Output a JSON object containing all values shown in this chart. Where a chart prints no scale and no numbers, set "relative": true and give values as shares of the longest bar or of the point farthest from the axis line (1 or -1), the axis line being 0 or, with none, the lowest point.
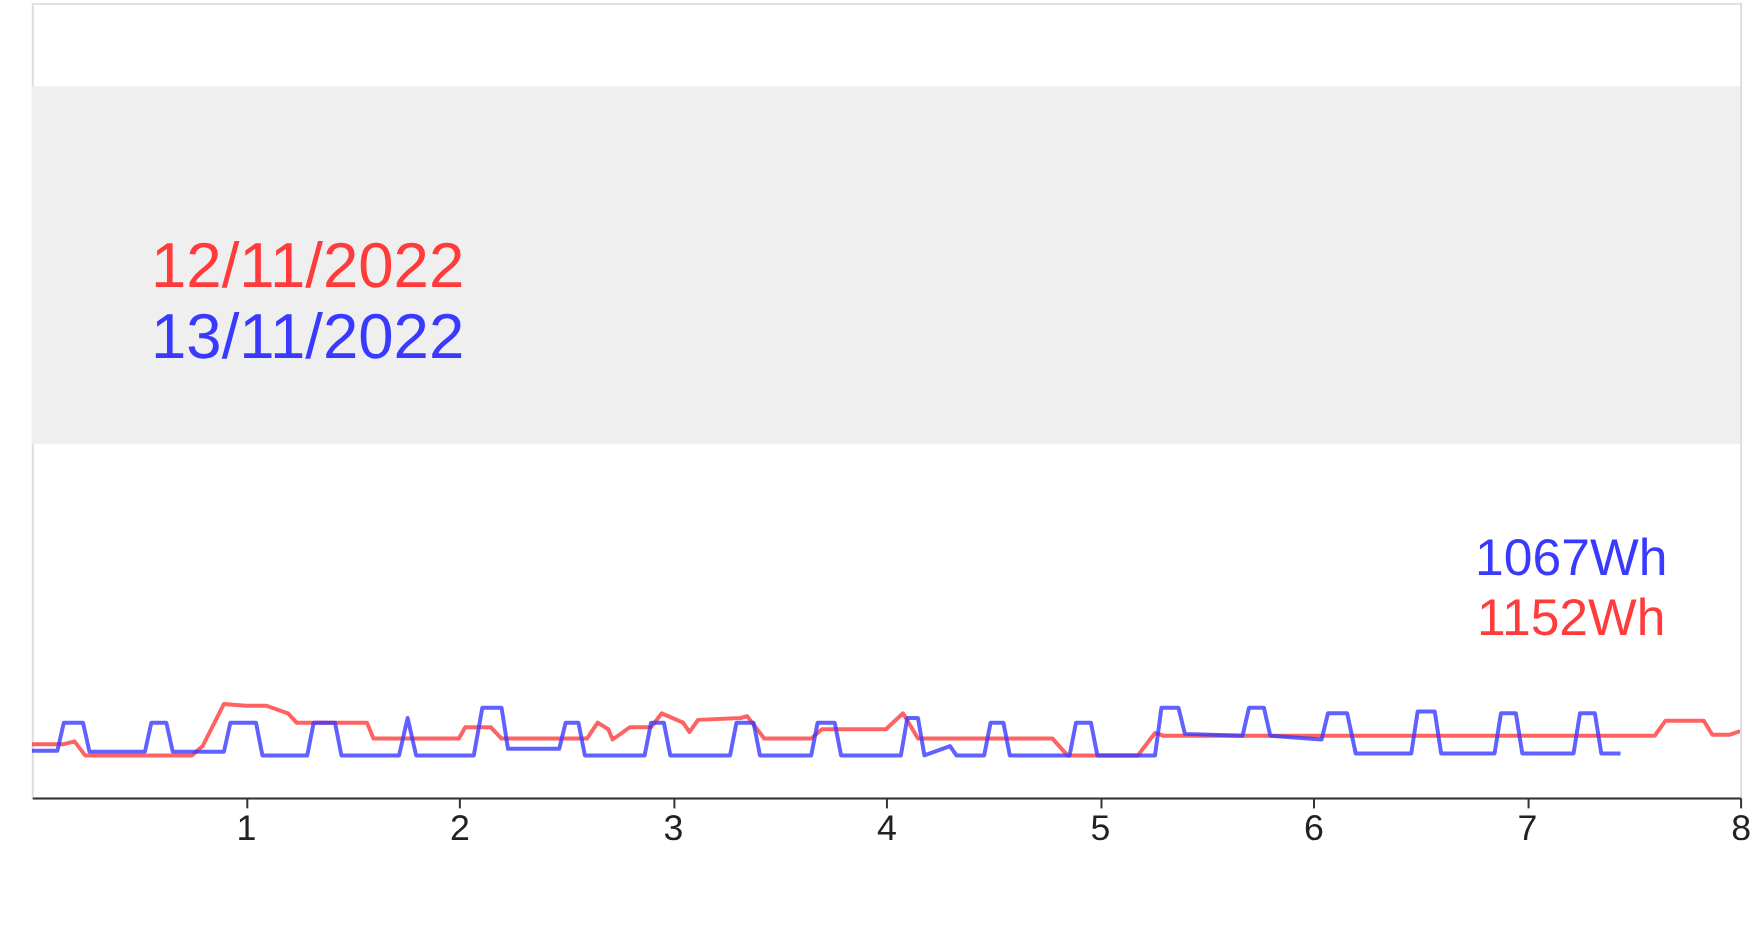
{
  "chart_data": {
    "type": "line",
    "relative": true,
    "xlim": [
      0,
      8
    ],
    "xticks": [
      1,
      2,
      3,
      4,
      5,
      6,
      7,
      8
    ],
    "legend": "top left",
    "line_style": "solid",
    "marker": "none",
    "series": [
      {
        "name": "12/11/2022",
        "color": "#ff3b3b",
        "x": [
          0,
          0.15,
          0.2,
          0.25,
          0.3,
          0.75,
          0.8,
          0.9,
          1.0,
          1.1,
          1.2,
          1.24,
          1.57,
          1.6,
          2.0,
          2.03,
          2.15,
          2.2,
          2.6,
          2.65,
          2.7,
          2.72,
          2.8,
          2.9,
          2.95,
          3.05,
          3.08,
          3.12,
          3.32,
          3.35,
          3.43,
          3.65,
          3.7,
          4.0,
          4.08,
          4.15,
          4.78,
          4.85,
          5.18,
          5.26,
          5.3,
          7.6,
          7.65,
          7.83,
          7.87,
          7.95,
          8.0
        ],
        "values": [
          0.57,
          0.57,
          0.6,
          0.45,
          0.45,
          0.45,
          0.55,
          1.0,
          0.98,
          0.98,
          0.9,
          0.8,
          0.8,
          0.63,
          0.63,
          0.75,
          0.75,
          0.63,
          0.63,
          0.8,
          0.73,
          0.62,
          0.75,
          0.75,
          0.9,
          0.8,
          0.7,
          0.83,
          0.85,
          0.87,
          0.63,
          0.63,
          0.73,
          0.73,
          0.9,
          0.63,
          0.63,
          0.45,
          0.45,
          0.69,
          0.66,
          0.66,
          0.82,
          0.82,
          0.67,
          0.67,
          0.71
        ]
      },
      {
        "name": "13/11/2022",
        "color": "#3a3aff",
        "x": [
          0,
          0.12,
          0.15,
          0.24,
          0.27,
          0.53,
          0.56,
          0.63,
          0.66,
          0.9,
          0.93,
          1.05,
          1.08,
          1.29,
          1.32,
          1.42,
          1.45,
          1.72,
          1.76,
          1.8,
          2.07,
          2.11,
          2.2,
          2.23,
          2.47,
          2.5,
          2.56,
          2.59,
          2.87,
          2.9,
          2.96,
          2.99,
          3.27,
          3.3,
          3.38,
          3.41,
          3.65,
          3.68,
          3.76,
          3.79,
          4.07,
          4.1,
          4.15,
          4.18,
          4.3,
          4.33,
          4.46,
          4.49,
          4.55,
          4.58,
          4.86,
          4.89,
          4.96,
          4.99,
          5.26,
          5.29,
          5.37,
          5.4,
          5.67,
          5.7,
          5.77,
          5.8,
          6.04,
          6.07,
          6.16,
          6.2,
          6.46,
          6.49,
          6.57,
          6.6,
          6.85,
          6.88,
          6.95,
          6.98,
          7.22,
          7.25,
          7.32,
          7.35,
          7.44
        ],
        "values": [
          0.5,
          0.5,
          0.8,
          0.8,
          0.49,
          0.49,
          0.8,
          0.8,
          0.49,
          0.49,
          0.8,
          0.8,
          0.45,
          0.45,
          0.8,
          0.8,
          0.45,
          0.45,
          0.85,
          0.45,
          0.45,
          0.96,
          0.96,
          0.52,
          0.52,
          0.8,
          0.8,
          0.45,
          0.45,
          0.8,
          0.8,
          0.45,
          0.45,
          0.8,
          0.8,
          0.45,
          0.45,
          0.8,
          0.8,
          0.45,
          0.45,
          0.85,
          0.85,
          0.45,
          0.55,
          0.45,
          0.45,
          0.8,
          0.8,
          0.45,
          0.45,
          0.8,
          0.8,
          0.45,
          0.45,
          0.96,
          0.96,
          0.68,
          0.66,
          0.96,
          0.96,
          0.66,
          0.62,
          0.9,
          0.9,
          0.47,
          0.47,
          0.92,
          0.92,
          0.47,
          0.47,
          0.9,
          0.9,
          0.47,
          0.47,
          0.9,
          0.9,
          0.47,
          0.47
        ]
      }
    ],
    "annotations": [
      "1152Wh",
      "1067Wh"
    ]
  }
}
